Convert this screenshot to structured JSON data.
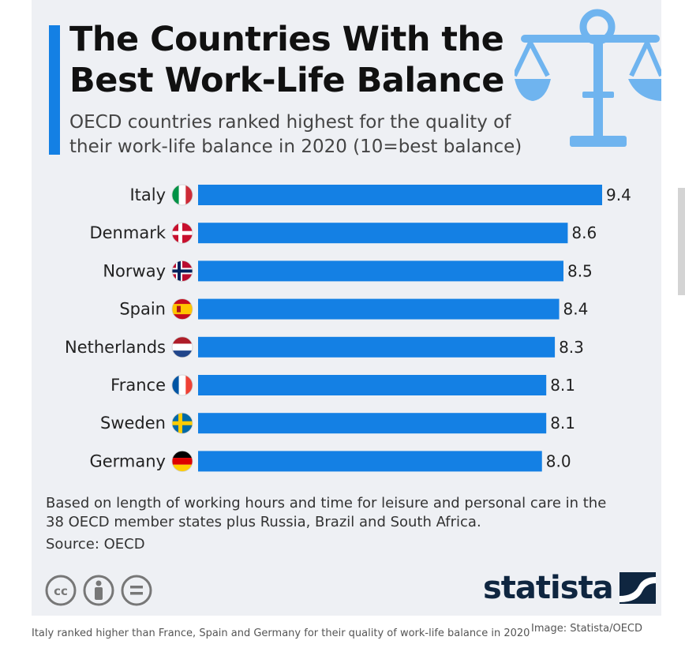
{
  "title": "The Countries With the Best Work-Life Balance",
  "subtitle": "OECD countries ranked highest for the quality of their work-life balance in 2020 (10=best balance)",
  "chart_data": {
    "type": "bar",
    "orientation": "horizontal",
    "categories": [
      "Italy",
      "Denmark",
      "Norway",
      "Spain",
      "Netherlands",
      "France",
      "Sweden",
      "Germany"
    ],
    "values": [
      9.4,
      8.6,
      8.5,
      8.4,
      8.3,
      8.1,
      8.1,
      8.0
    ],
    "value_labels": [
      "9.4",
      "8.6",
      "8.5",
      "8.4",
      "8.3",
      "8.1",
      "8.1",
      "8.0"
    ],
    "flags": [
      "italy-flag-icon",
      "denmark-flag-icon",
      "norway-flag-icon",
      "spain-flag-icon",
      "netherlands-flag-icon",
      "france-flag-icon",
      "sweden-flag-icon",
      "germany-flag-icon"
    ],
    "bar_color": "#1480e4",
    "xlim": [
      0,
      9.4
    ],
    "grid": false,
    "legend": "none"
  },
  "note": "Based on length of working hours and time for leisure and personal care in the 38 OECD member states plus Russia, Brazil and South Africa.",
  "source": "Source: OECD",
  "license_icons": [
    "cc-icon",
    "attribution-icon",
    "no-derivatives-icon"
  ],
  "logo": {
    "text": "statista",
    "icon": "statista-logo-icon"
  },
  "caption": "Italy ranked higher than France, Spain and Germany for their quality of work-life balance in 2020",
  "credit": "Image: Statista/OECD",
  "colors": {
    "accent": "#1480e4",
    "card_background": "#eef0f4",
    "logo": "#0f2640",
    "scale_icon": "#6fb4ef"
  }
}
